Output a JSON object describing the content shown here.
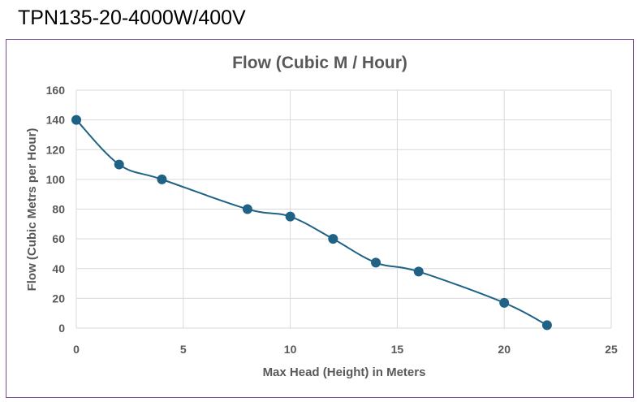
{
  "page": {
    "title": "TPN135-20-4000W/400V"
  },
  "chart_data": {
    "type": "scatter",
    "title": "Flow (Cubic M / Hour)",
    "xlabel": "Max Head (Height) in Meters",
    "ylabel": "Flow (Cubic Metrs per Hour)",
    "xlim": [
      0,
      25
    ],
    "ylim": [
      0,
      160
    ],
    "xticks": [
      0,
      5,
      10,
      15,
      20,
      25
    ],
    "yticks": [
      0,
      20,
      40,
      60,
      80,
      100,
      120,
      140,
      160
    ],
    "grid": true,
    "legend": "none",
    "smooth_line": true,
    "series": [
      {
        "x": [
          0,
          2,
          4,
          8,
          10,
          12,
          14,
          16,
          20,
          22
        ],
        "y": [
          140,
          110,
          100,
          80,
          75,
          60,
          44,
          38,
          17,
          2
        ]
      }
    ],
    "colors": {
      "series": "#1f6285",
      "grid": "#d9d9d9",
      "text": "#595959",
      "frame": "#7a4f9a"
    }
  }
}
